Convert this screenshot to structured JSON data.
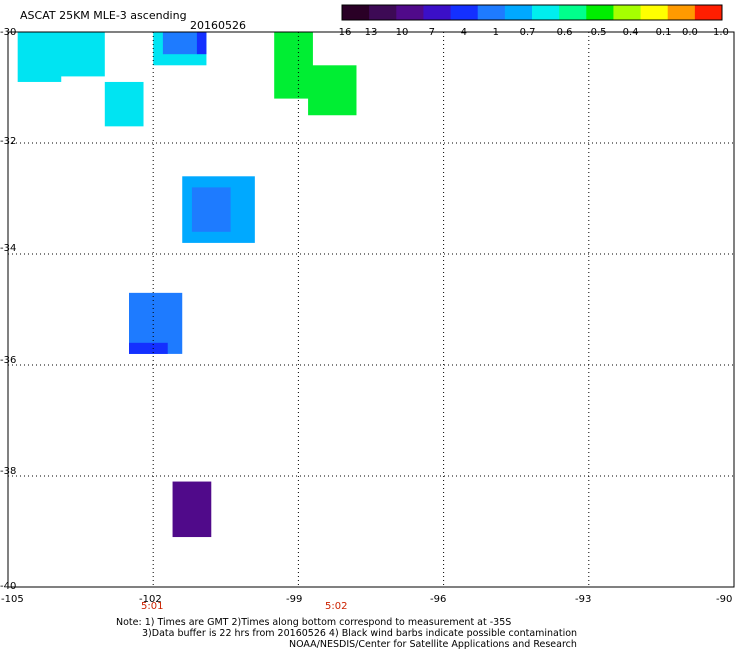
{
  "title": "ASCAT 25KM MLE-3 ascending",
  "date": "20160526",
  "colorbar": {
    "labels": [
      "-16",
      "-13",
      "-10",
      "-7",
      "-4",
      "-1",
      "-0.7",
      "-0.6",
      "-0.5",
      "-0.4",
      "-0.1",
      "0.0",
      "1.0"
    ],
    "colors": [
      "#2a0026",
      "#3d0a55",
      "#500a8a",
      "#3b0fc8",
      "#1430ff",
      "#1e7bff",
      "#00a9ff",
      "#00eeee",
      "#00ff8c",
      "#00ee00",
      "#a6ff00",
      "#ffff00",
      "#ff9a00",
      "#ff1e00"
    ]
  },
  "axes": {
    "y_ticks": [
      "-30",
      "-32",
      "-34",
      "-36",
      "-38",
      "-40"
    ],
    "x_ticks": [
      "-105",
      "-102",
      "-99",
      "-96",
      "-93",
      "-90"
    ]
  },
  "times": [
    "5:01",
    "5:02"
  ],
  "notes": [
    "Note: 1) Times are GMT 2)Times along bottom correspond to measurement at -35S",
    "3)Data buffer is 22 hrs from 20160526 4) Black wind barbs indicate possible contamination",
    "NOAA/NESDIS/Center for Satellite Applications and Research"
  ],
  "chart_data": {
    "type": "heatmap",
    "title": "ASCAT 25KM MLE-3 ascending",
    "xlim": [
      -105,
      -90
    ],
    "ylim": [
      -40,
      -30
    ],
    "xticks": [
      -105,
      -102,
      -99,
      -96,
      -93,
      -90
    ],
    "yticks": [
      -30,
      -32,
      -34,
      -36,
      -38,
      -40
    ],
    "grid": true,
    "colorbar_levels": [
      -16,
      -13,
      -10,
      -7,
      -4,
      -1,
      -0.7,
      -0.6,
      -0.5,
      -0.4,
      -0.1,
      0.0,
      1.0
    ],
    "cells": [
      {
        "lon_min": -104.8,
        "lon_max": -103.9,
        "lat_min": -30.9,
        "lat_max": -30.0,
        "color": "#00e4f2"
      },
      {
        "lon_min": -104.0,
        "lon_max": -103.0,
        "lat_min": -30.8,
        "lat_max": -30.0,
        "color": "#00e4f2"
      },
      {
        "lon_min": -103.0,
        "lon_max": -102.2,
        "lat_min": -31.7,
        "lat_max": -30.9,
        "color": "#00e4f2"
      },
      {
        "lon_min": -102.0,
        "lon_max": -100.9,
        "lat_min": -30.6,
        "lat_max": -30.0,
        "color": "#00e4f2"
      },
      {
        "lon_min": -101.8,
        "lon_max": -101.1,
        "lat_min": -30.4,
        "lat_max": -30.0,
        "color": "#1e7bff"
      },
      {
        "lon_min": -101.1,
        "lon_max": -100.9,
        "lat_min": -30.4,
        "lat_max": -30.0,
        "color": "#1430ff"
      },
      {
        "lon_min": -99.5,
        "lon_max": -98.7,
        "lat_min": -31.2,
        "lat_max": -30.0,
        "color": "#00ee33"
      },
      {
        "lon_min": -98.8,
        "lon_max": -97.8,
        "lat_min": -31.5,
        "lat_max": -30.6,
        "color": "#00ee33"
      },
      {
        "lon_min": -101.4,
        "lon_max": -99.9,
        "lat_min": -33.8,
        "lat_max": -32.6,
        "color": "#00a9ff"
      },
      {
        "lon_min": -101.2,
        "lon_max": -100.4,
        "lat_min": -33.6,
        "lat_max": -32.8,
        "color": "#1e7bff"
      },
      {
        "lon_min": -102.5,
        "lon_max": -101.4,
        "lat_min": -35.8,
        "lat_max": -34.7,
        "color": "#1e7bff"
      },
      {
        "lon_min": -102.5,
        "lon_max": -101.7,
        "lat_min": -35.8,
        "lat_max": -35.6,
        "color": "#1430ff"
      },
      {
        "lon_min": -101.6,
        "lon_max": -100.8,
        "lat_min": -39.1,
        "lat_max": -38.1,
        "color": "#500a8a"
      }
    ]
  }
}
